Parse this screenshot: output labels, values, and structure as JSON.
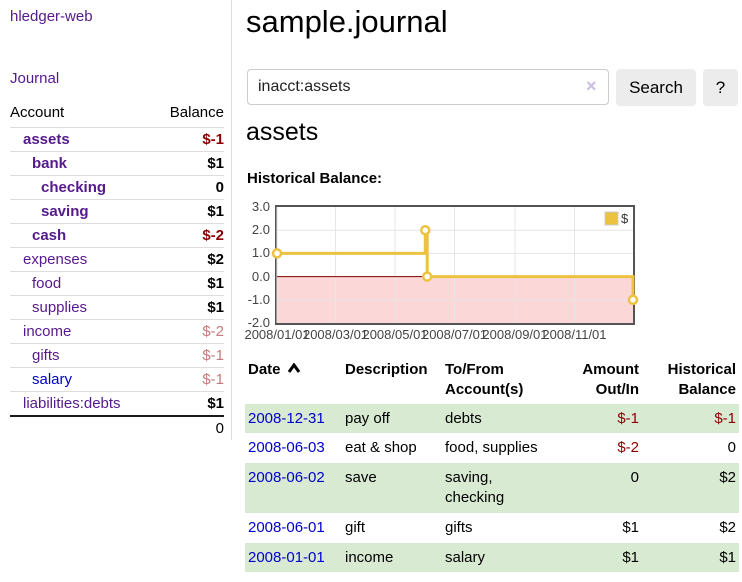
{
  "app": {
    "brand": "hledger-web",
    "nav_journal": "Journal"
  },
  "sidebar": {
    "columns": {
      "account": "Account",
      "balance": "Balance"
    },
    "rows": [
      {
        "account": "assets",
        "balance": "$-1",
        "indent": 1,
        "bold": true,
        "tone": "neg"
      },
      {
        "account": "bank",
        "balance": "$1",
        "indent": 2,
        "bold": true,
        "tone": ""
      },
      {
        "account": "checking",
        "balance": "0",
        "indent": 3,
        "bold": true,
        "tone": ""
      },
      {
        "account": "saving",
        "balance": "$1",
        "indent": 3,
        "bold": true,
        "tone": ""
      },
      {
        "account": "cash",
        "balance": "$-2",
        "indent": 2,
        "bold": true,
        "tone": "neg"
      },
      {
        "account": "expenses",
        "balance": "$2",
        "indent": 1,
        "bold": false,
        "tone": ""
      },
      {
        "account": "food",
        "balance": "$1",
        "indent": 2,
        "bold": false,
        "tone": ""
      },
      {
        "account": "supplies",
        "balance": "$1",
        "indent": 2,
        "bold": false,
        "tone": ""
      },
      {
        "account": "income",
        "balance": "$-2",
        "indent": 1,
        "bold": false,
        "tone": "softneg"
      },
      {
        "account": "gifts",
        "balance": "$-1",
        "indent": 2,
        "bold": false,
        "tone": "softneg"
      },
      {
        "account": "salary",
        "balance": "$-1",
        "indent": 2,
        "bold": false,
        "tone": "softneg",
        "blue": true
      },
      {
        "account": "liabilities:debts",
        "balance": "$1",
        "indent": 1,
        "bold": false,
        "tone": ""
      }
    ],
    "total": "0"
  },
  "header": {
    "title": "sample.journal"
  },
  "search": {
    "value": "inacct:assets",
    "clear_icon": "×",
    "button_label": "Search",
    "help_label": "?"
  },
  "account_page": {
    "heading": "assets",
    "chart_label": "Historical Balance:"
  },
  "chart_data": {
    "type": "line",
    "step": true,
    "title": "Historical Balance",
    "series": [
      {
        "name": "$",
        "color": "#edc240",
        "points": [
          [
            "2008-01-01",
            1
          ],
          [
            "2008-06-01",
            2
          ],
          [
            "2008-06-03",
            0
          ],
          [
            "2008-12-31",
            -1
          ]
        ]
      }
    ],
    "xlim": [
      "2008-01-01",
      "2008-12-31"
    ],
    "ylim": [
      -2,
      3
    ],
    "y_ticks": [
      "3.0",
      "2.0",
      "1.0",
      "0.0",
      "-1.0",
      "-2.0"
    ],
    "x_ticks": [
      "2008/01/01",
      "2008/03/01",
      "2008/05/01",
      "2008/07/01",
      "2008/09/01",
      "2008/11/01"
    ],
    "legend": {
      "label": "$",
      "position": "top-right"
    },
    "grid": true,
    "zero_line_color": "#800000",
    "negative_region_color": "#fbd7d7",
    "grid_color": "#e6e6e6",
    "border_color": "#545454"
  },
  "register": {
    "columns": [
      {
        "l1": "Date",
        "l2": "",
        "align": "left",
        "sorted": "asc"
      },
      {
        "l1": "Description",
        "l2": "",
        "align": "left"
      },
      {
        "l1": "To/From",
        "l2": "Account(s)",
        "align": "left"
      },
      {
        "l1": "Amount",
        "l2": "Out/In",
        "align": "right"
      },
      {
        "l1": "Historical",
        "l2": "Balance",
        "align": "right"
      }
    ],
    "rows": [
      {
        "date": "2008-12-31",
        "description": "pay off",
        "accounts": "debts",
        "amount": "$-1",
        "amount_tone": "neg",
        "balance": "$-1",
        "balance_tone": "neg"
      },
      {
        "date": "2008-06-03",
        "description": "eat & shop",
        "accounts": "food, supplies",
        "amount": "$-2",
        "amount_tone": "neg",
        "balance": "0",
        "balance_tone": ""
      },
      {
        "date": "2008-06-02",
        "description": "save",
        "accounts": "saving, checking",
        "amount": "0",
        "amount_tone": "",
        "balance": "$2",
        "balance_tone": ""
      },
      {
        "date": "2008-06-01",
        "description": "gift",
        "accounts": "gifts",
        "amount": "$1",
        "amount_tone": "",
        "balance": "$2",
        "balance_tone": ""
      },
      {
        "date": "2008-01-01",
        "description": "income",
        "accounts": "salary",
        "amount": "$1",
        "amount_tone": "",
        "balance": "$1",
        "balance_tone": ""
      }
    ]
  },
  "colors": {
    "accent_gold": "#edc240",
    "negative_dark": "#8b0000",
    "negative_soft": "#c47a7a",
    "row_stripe_green": "#d9ead3",
    "link_purple": "#551a8b",
    "link_blue": "#0000cc",
    "chart_negative_bg": "#fbd7d7",
    "chart_zero_line": "#800000"
  }
}
